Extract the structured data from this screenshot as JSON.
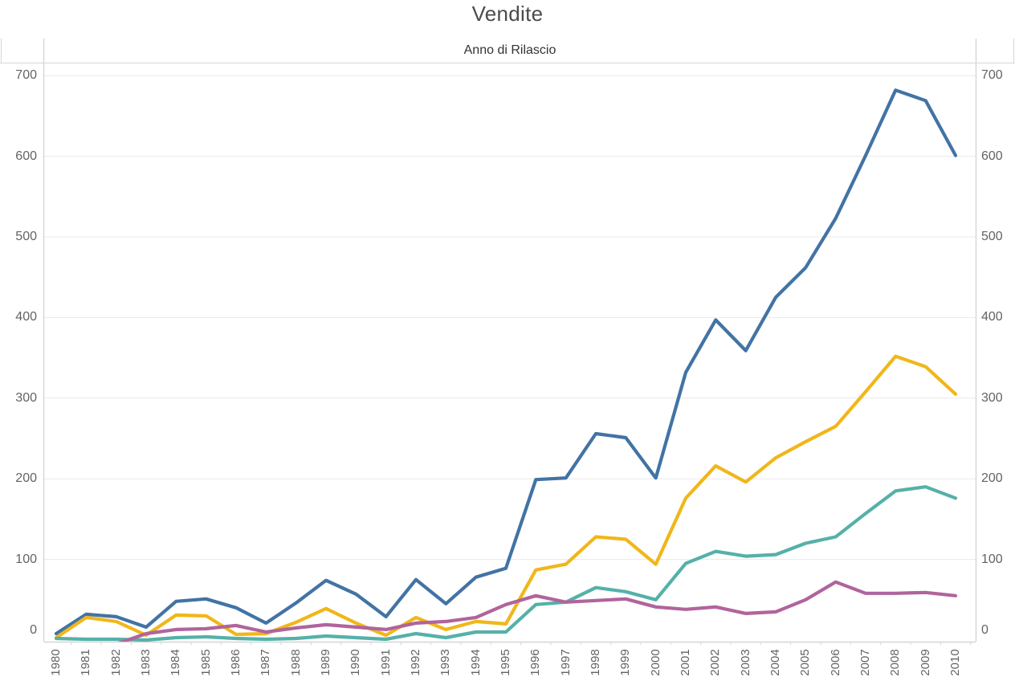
{
  "title": "Vendite",
  "x_axis_title": "Anno di Rilascio",
  "colors": {
    "blue": "#4273a4",
    "yellow": "#f0b71a",
    "teal": "#55b1a8",
    "purple": "#b0649c",
    "gridline": "#e9e9e9",
    "axis_line": "#d6d6d6",
    "tick_text": "#636363",
    "title_text": "#4b4b4b"
  },
  "chart_data": {
    "type": "line",
    "title": "Vendite",
    "xlabel": "Anno di Rilascio",
    "ylabel": "",
    "legend": "none",
    "grid": "horizontal-only",
    "dual_y_axis_labels": true,
    "ylim": [
      0,
      720
    ],
    "y_ticks": [
      0,
      100,
      200,
      300,
      400,
      500,
      600,
      700
    ],
    "x": [
      1980,
      1981,
      1982,
      1983,
      1984,
      1985,
      1986,
      1987,
      1988,
      1989,
      1990,
      1991,
      1992,
      1993,
      1994,
      1995,
      1996,
      1997,
      1998,
      1999,
      2000,
      2001,
      2002,
      2003,
      2004,
      2005,
      2006,
      2007,
      2008,
      2009,
      2010
    ],
    "series": [
      {
        "name": "blue",
        "color_key": "blue",
        "values": [
          8,
          32,
          29,
          16,
          48,
          51,
          40,
          21,
          46,
          74,
          57,
          29,
          75,
          45,
          78,
          89,
          199,
          201,
          256,
          251,
          201,
          332,
          397,
          359,
          425,
          462,
          523,
          601,
          682,
          669,
          601
        ]
      },
      {
        "name": "yellow",
        "color_key": "yellow",
        "values": [
          3,
          28,
          23,
          6,
          31,
          30,
          7,
          8,
          22,
          39,
          21,
          6,
          28,
          13,
          23,
          20,
          87,
          94,
          128,
          125,
          94,
          176,
          216,
          196,
          226,
          246,
          265,
          308,
          352,
          339,
          305
        ]
      },
      {
        "name": "teal",
        "color_key": "teal",
        "values": [
          2,
          1,
          1,
          0,
          3,
          4,
          2,
          1,
          2,
          5,
          3,
          1,
          8,
          3,
          10,
          10,
          44,
          47,
          65,
          60,
          50,
          95,
          110,
          104,
          106,
          120,
          128,
          157,
          185,
          190,
          176
        ]
      },
      {
        "name": "purple",
        "color_key": "purple",
        "values": [
          null,
          null,
          -5,
          8,
          13,
          14,
          18,
          10,
          15,
          19,
          16,
          13,
          21,
          23,
          28,
          44,
          55,
          47,
          49,
          51,
          41,
          38,
          41,
          33,
          35,
          50,
          72,
          58,
          58,
          59,
          55
        ]
      }
    ]
  }
}
